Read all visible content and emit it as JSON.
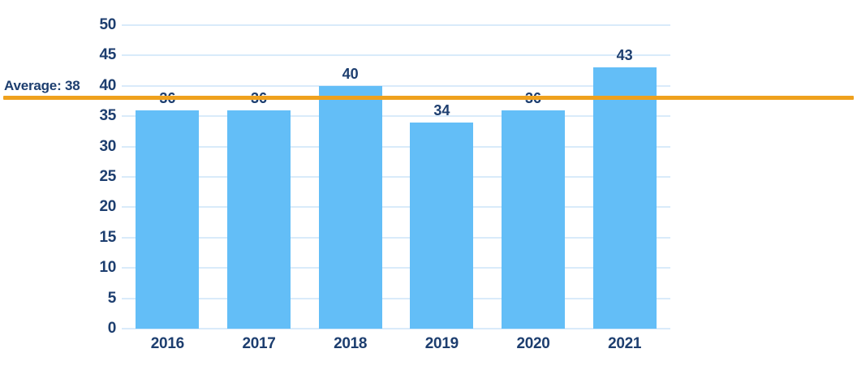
{
  "chart_data": {
    "type": "bar",
    "title": "",
    "xlabel": "",
    "ylabel": "",
    "categories": [
      "2016",
      "2017",
      "2018",
      "2019",
      "2020",
      "2021"
    ],
    "values": [
      36,
      36,
      40,
      34,
      36,
      43
    ],
    "ylim": [
      0,
      50
    ],
    "yticks": [
      0,
      5,
      10,
      15,
      20,
      25,
      30,
      35,
      40,
      45,
      50
    ],
    "grid": true,
    "legend": "none",
    "average_line": {
      "label": "Average: 38",
      "value": 38
    },
    "colors": {
      "bar": "#63bef7",
      "grid": "#d9ebfa",
      "text": "#1d3e6f",
      "average_line": "#efa11d"
    }
  }
}
